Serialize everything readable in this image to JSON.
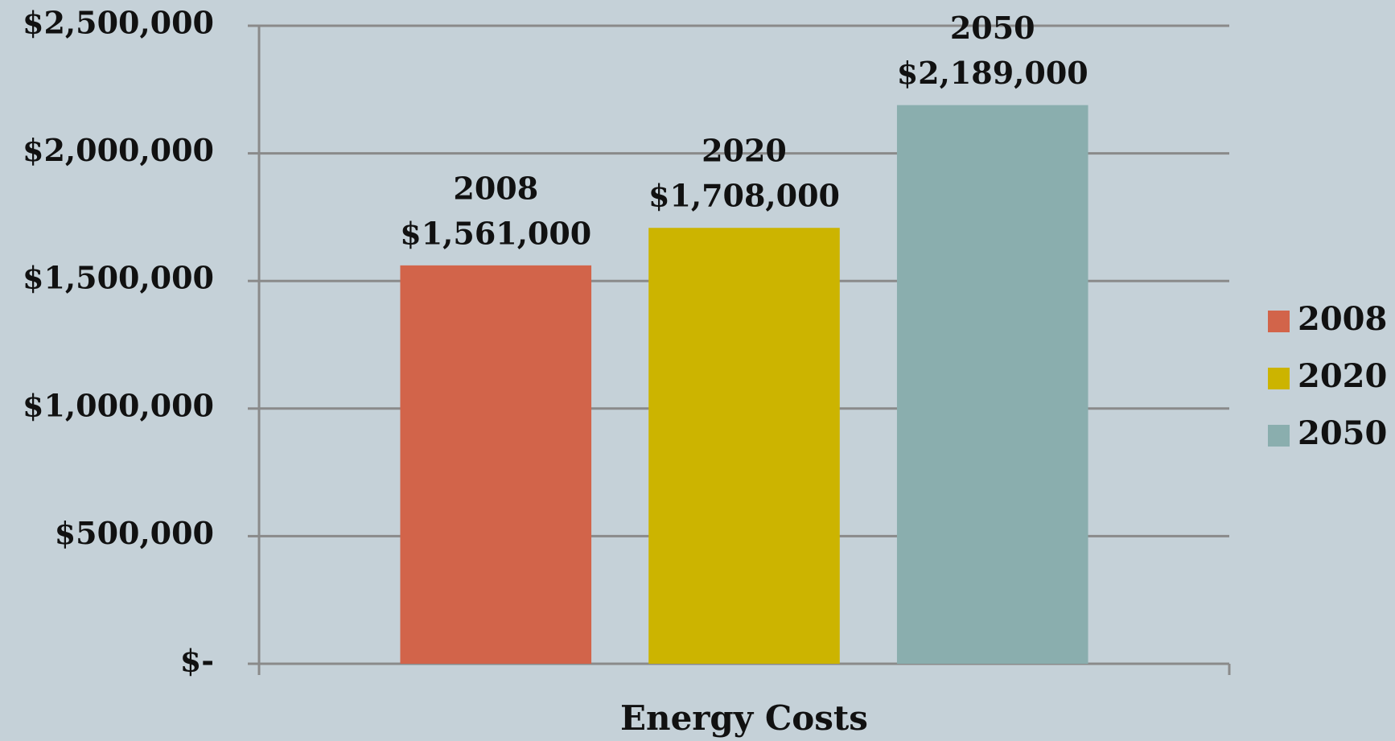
{
  "chart_data": {
    "type": "bar",
    "categories": [
      "Energy Costs"
    ],
    "series": [
      {
        "name": "2008",
        "color": "#d2644a",
        "values": [
          1561000
        ],
        "value_labels": [
          "$1,561,000"
        ]
      },
      {
        "name": "2020",
        "color": "#ccb400",
        "values": [
          1708000
        ],
        "value_labels": [
          "$1,708,000"
        ]
      },
      {
        "name": "2050",
        "color": "#8aaeae",
        "values": [
          2189000
        ],
        "value_labels": [
          "$2,189,000"
        ]
      }
    ],
    "ylim": [
      0,
      2500000
    ],
    "yticks": [
      {
        "value": 0,
        "label": "$-"
      },
      {
        "value": 500000,
        "label": "$500,000"
      },
      {
        "value": 1000000,
        "label": "$1,000,000"
      },
      {
        "value": 1500000,
        "label": "$1,500,000"
      },
      {
        "value": 2000000,
        "label": "$2,000,000"
      },
      {
        "value": 2500000,
        "label": "$2,500,000"
      }
    ],
    "grid": true,
    "legend": "right"
  }
}
